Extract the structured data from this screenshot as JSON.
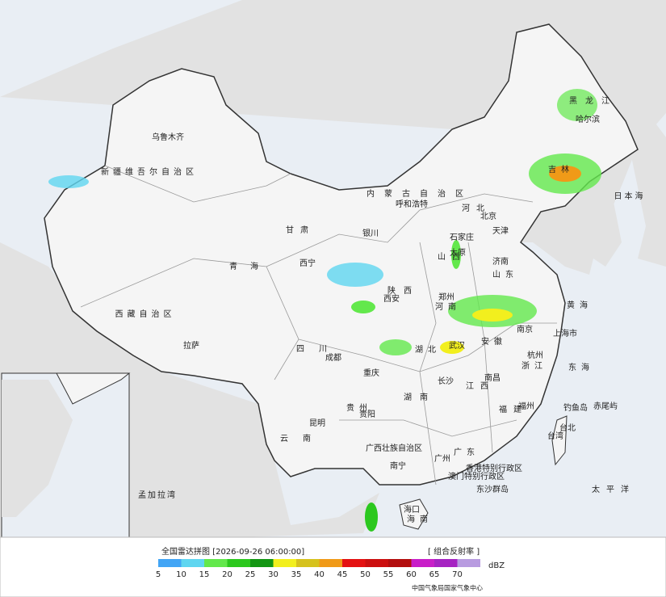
{
  "header": {
    "title": "全国雷达拼图 [2026-09-26 06:00:00]",
    "product": "[ 组合反射率 ]",
    "unit": "dBZ",
    "source": "中国气象局国家气象中心"
  },
  "legend": {
    "ticks": [
      5,
      10,
      15,
      20,
      25,
      30,
      35,
      40,
      45,
      50,
      55,
      60,
      65,
      70
    ],
    "colors": [
      "#42a5f5",
      "#5fd6f0",
      "#63e84c",
      "#2cc81e",
      "#139613",
      "#f2ef1e",
      "#d6c21d",
      "#f09a18",
      "#e41111",
      "#cc0f0f",
      "#b30e0e",
      "#c81ec8",
      "#a623c2",
      "#b89be0"
    ]
  },
  "labels": [
    "乌鲁木齐",
    "新疆维吾尔自治区",
    "西藏自治区",
    "拉萨",
    "青海",
    "西宁",
    "甘肃",
    "银川",
    "内蒙古自治区",
    "呼和浩特",
    "黑龙江",
    "哈尔滨",
    "吉林",
    "北京",
    "天津",
    "石家庄",
    "河北",
    "山西",
    "太原",
    "山东",
    "济南",
    "陕西",
    "西安",
    "河南",
    "郑州",
    "四川",
    "成都",
    "重庆",
    "湖北",
    "武汉",
    "安徽",
    "南京",
    "上海市",
    "浙江",
    "杭州",
    "江西",
    "南昌",
    "湖南",
    "长沙",
    "贵州",
    "贵阳",
    "云南",
    "昆明",
    "广西壮族自治区",
    "南宁",
    "广东",
    "广州",
    "福建",
    "福州",
    "台湾",
    "台北",
    "海南",
    "海口",
    "香港特别行政区",
    "澳门特别行政区",
    "东沙群岛",
    "钓鱼岛",
    "赤尾屿",
    "日本海",
    "黄海",
    "东海",
    "太平洋",
    "孟加拉湾"
  ]
}
